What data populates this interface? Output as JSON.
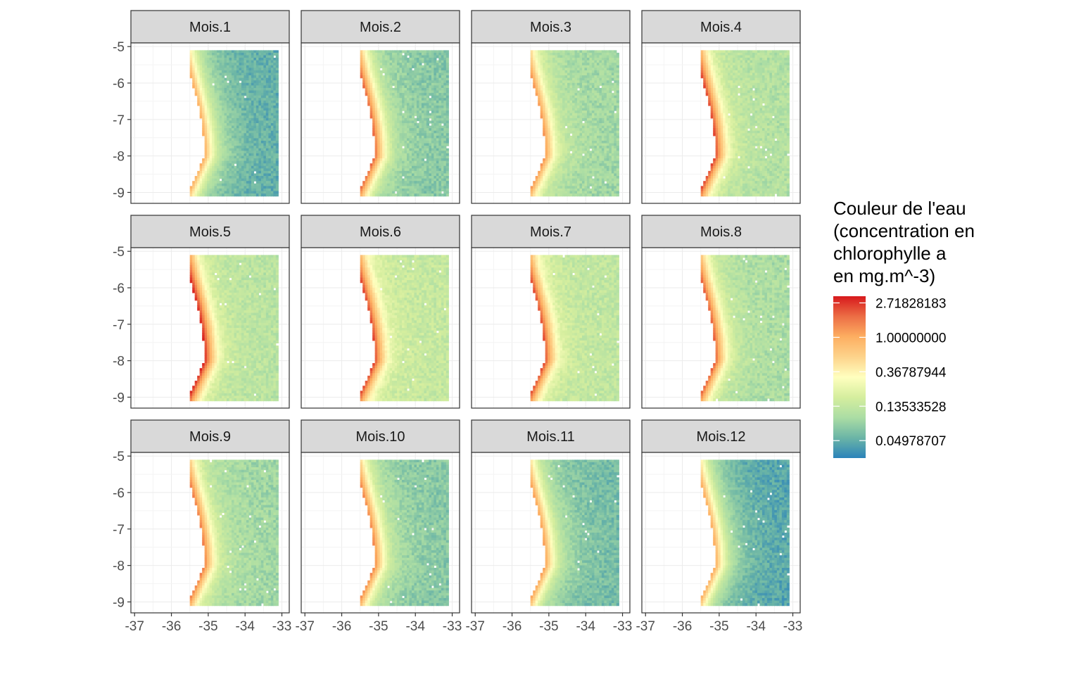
{
  "chart_data": {
    "type": "heatmap",
    "facets": [
      "Mois.1",
      "Mois.2",
      "Mois.3",
      "Mois.4",
      "Mois.5",
      "Mois.6",
      "Mois.7",
      "Mois.8",
      "Mois.9",
      "Mois.10",
      "Mois.11",
      "Mois.12"
    ],
    "facet_layout": {
      "columns": 4,
      "rows": 3
    },
    "x_ticks": [
      "-37",
      "-36",
      "-35",
      "-34",
      "-33"
    ],
    "y_ticks": [
      "-5",
      "-6",
      "-7",
      "-8",
      "-9"
    ],
    "x_tick_values": [
      -37,
      -36,
      -35,
      -34,
      -33
    ],
    "y_tick_values": [
      -5,
      -6,
      -7,
      -8,
      -9
    ],
    "xlim": [
      -37.1,
      -32.8
    ],
    "ylim": [
      -9.3,
      -4.9
    ],
    "raster_extent": {
      "lon": [
        -35.5,
        -33.1
      ],
      "lat": [
        -9.1,
        -5.1
      ]
    },
    "land_color": "#d3d3d3",
    "legend": {
      "title_lines": [
        "Couleur de l'eau",
        "(concentration en",
        "chlorophylle a",
        "en mg.m^-3)"
      ],
      "labels": [
        "2.71828183",
        "1.00000000",
        "0.36787944",
        "0.13533528",
        "0.04978707"
      ],
      "values": [
        2.71828183,
        1.0,
        0.36787944,
        0.13533528,
        0.04978707
      ],
      "placement": "right",
      "palette": [
        "#2b83ba",
        "#6bb5a6",
        "#abdda4",
        "#d5ee9e",
        "#ffffbf",
        "#fdd38b",
        "#fdae61",
        "#ec6e45",
        "#d7191c"
      ]
    },
    "monthly_level": [
      0.05,
      0.07,
      0.09,
      0.11,
      0.12,
      0.14,
      0.13,
      0.1,
      0.09,
      0.07,
      0.06,
      0.045
    ],
    "coastal_peak": [
      0.6,
      1.2,
      0.8,
      1.6,
      2.0,
      1.6,
      1.5,
      1.3,
      1.0,
      0.9,
      0.7,
      0.6
    ]
  }
}
